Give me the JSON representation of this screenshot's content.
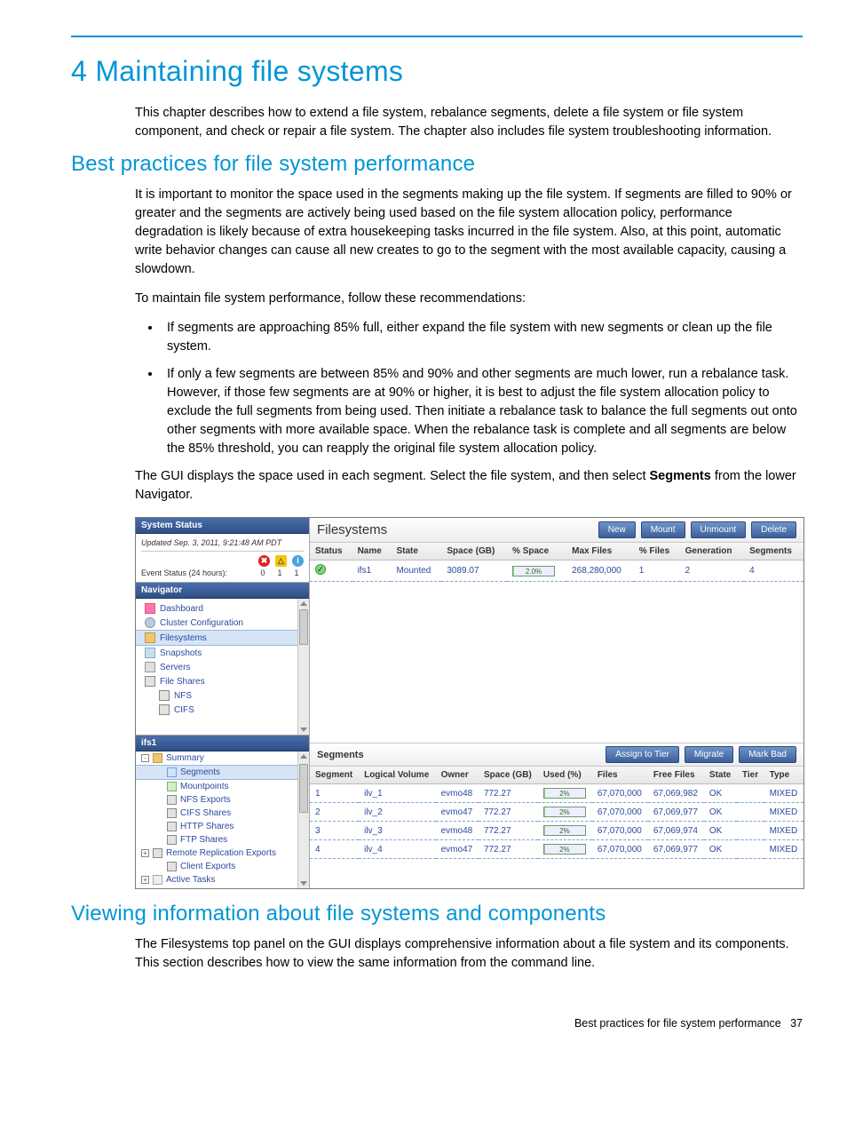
{
  "chapter": {
    "number": "4",
    "title": "Maintaining file systems",
    "intro": "This chapter describes how to extend a file system, rebalance segments, delete a file system or file system component, and check or repair a file system. The chapter also includes file system troubleshooting information."
  },
  "section_best_practices": {
    "title": "Best practices for file system performance",
    "para1": "It is important to monitor the space used in the segments making up the file system. If segments are filled to 90% or greater and the segments are actively being used based on the file system allocation policy, performance degradation is likely because of extra housekeeping tasks incurred in the file system. Also, at this point, automatic write behavior changes can cause all new creates to go to the segment with the most available capacity, causing a slowdown.",
    "para2": "To maintain file system performance, follow these recommendations:",
    "bullet1": "If segments are approaching 85% full, either expand the file system with new segments or clean up the file system.",
    "bullet2": "If only a few segments are between 85% and 90% and other segments are much lower, run a rebalance task. However, if those few segments are at 90% or higher, it is best to adjust the file system allocation policy to exclude the full segments from being used. Then initiate a rebalance task to balance the full segments out onto other segments with more available space. When the rebalance task is complete and all segments are below the 85% threshold, you can reapply the original file system allocation policy.",
    "para3_pre": "The GUI displays the space used in each segment. Select the file system, and then select ",
    "para3_bold": "Segments",
    "para3_post": " from the lower Navigator."
  },
  "gui": {
    "system_status": {
      "header": "System Status",
      "updated": "Updated Sep. 3, 2011, 9:21:48 AM PDT",
      "event_label": "Event Status (24 hours):",
      "counts": {
        "err": "0",
        "warn": "1",
        "info": "1"
      }
    },
    "navigator": {
      "header": "Navigator",
      "items": [
        {
          "label": "Dashboard",
          "icon": "ni-dash"
        },
        {
          "label": "Cluster Configuration",
          "icon": "ni-gear"
        },
        {
          "label": "Filesystems",
          "icon": "ni-folder",
          "selected": true
        },
        {
          "label": "Snapshots",
          "icon": "ni-snap"
        },
        {
          "label": "Servers",
          "icon": "ni-server"
        },
        {
          "label": "File Shares",
          "icon": "ni-share"
        },
        {
          "label": "NFS",
          "icon": "ni-share",
          "sub": true
        },
        {
          "label": "CIFS",
          "icon": "ni-share",
          "sub": true
        }
      ]
    },
    "lower_nav": {
      "header": "ifs1",
      "items": [
        {
          "label": "Summary",
          "toggle": "-",
          "indent": 0,
          "icon": "ni-folder"
        },
        {
          "label": "Segments",
          "indent": 1,
          "icon": "ni-seg",
          "selected": true
        },
        {
          "label": "Mountpoints",
          "indent": 1,
          "icon": "ni-mount"
        },
        {
          "label": "NFS Exports",
          "indent": 1,
          "icon": "ni-share"
        },
        {
          "label": "CIFS Shares",
          "indent": 1,
          "icon": "ni-share"
        },
        {
          "label": "HTTP Shares",
          "indent": 1,
          "icon": "ni-share"
        },
        {
          "label": "FTP Shares",
          "indent": 1,
          "icon": "ni-share"
        },
        {
          "label": "Remote Replication Exports",
          "toggle": "+",
          "indent": 0,
          "icon": "ni-share"
        },
        {
          "label": "Client Exports",
          "indent": 1,
          "icon": "ni-share"
        },
        {
          "label": "Active Tasks",
          "toggle": "+",
          "indent": 0,
          "icon": "ni-task"
        }
      ]
    },
    "filesystems": {
      "title": "Filesystems",
      "buttons": {
        "new": "New",
        "mount": "Mount",
        "unmount": "Unmount",
        "delete": "Delete"
      },
      "columns": [
        "Status",
        "Name",
        "State",
        "Space (GB)",
        "% Space",
        "Max Files",
        "% Files",
        "Generation",
        "Segments"
      ],
      "row": {
        "name": "ifs1",
        "state": "Mounted",
        "space_gb": "3089.07",
        "pct_space": "2.0%",
        "pct_space_fill": 2,
        "max_files": "268,280,000",
        "pct_files": "1",
        "generation": "2",
        "segments": "4"
      }
    },
    "segments": {
      "title": "Segments",
      "buttons": {
        "assign": "Assign to Tier",
        "migrate": "Migrate",
        "markbad": "Mark Bad"
      },
      "columns": [
        "Segment",
        "Logical Volume",
        "Owner",
        "Space (GB)",
        "Used (%)",
        "Files",
        "Free Files",
        "State",
        "Tier",
        "Type"
      ],
      "rows": [
        {
          "seg": "1",
          "lv": "ilv_1",
          "owner": "evmo48",
          "space": "772.27",
          "used": "2%",
          "fill": 2,
          "files": "67,070,000",
          "free": "67,069,982",
          "state": "OK",
          "tier": "",
          "type": "MIXED"
        },
        {
          "seg": "2",
          "lv": "ilv_2",
          "owner": "evmo47",
          "space": "772.27",
          "used": "2%",
          "fill": 2,
          "files": "67,070,000",
          "free": "67,069,977",
          "state": "OK",
          "tier": "",
          "type": "MIXED"
        },
        {
          "seg": "3",
          "lv": "ilv_3",
          "owner": "evmo48",
          "space": "772.27",
          "used": "2%",
          "fill": 2,
          "files": "67,070,000",
          "free": "67,069,974",
          "state": "OK",
          "tier": "",
          "type": "MIXED"
        },
        {
          "seg": "4",
          "lv": "ilv_4",
          "owner": "evmo47",
          "space": "772.27",
          "used": "2%",
          "fill": 2,
          "files": "67,070,000",
          "free": "67,069,977",
          "state": "OK",
          "tier": "",
          "type": "MIXED"
        }
      ]
    }
  },
  "section_viewing": {
    "title": "Viewing information about file systems and components",
    "para": "The Filesystems top panel on the GUI displays comprehensive information about a file system and its components. This section describes how to view the same information from the command line."
  },
  "footer": {
    "text": "Best practices for file system performance",
    "page": "37"
  }
}
